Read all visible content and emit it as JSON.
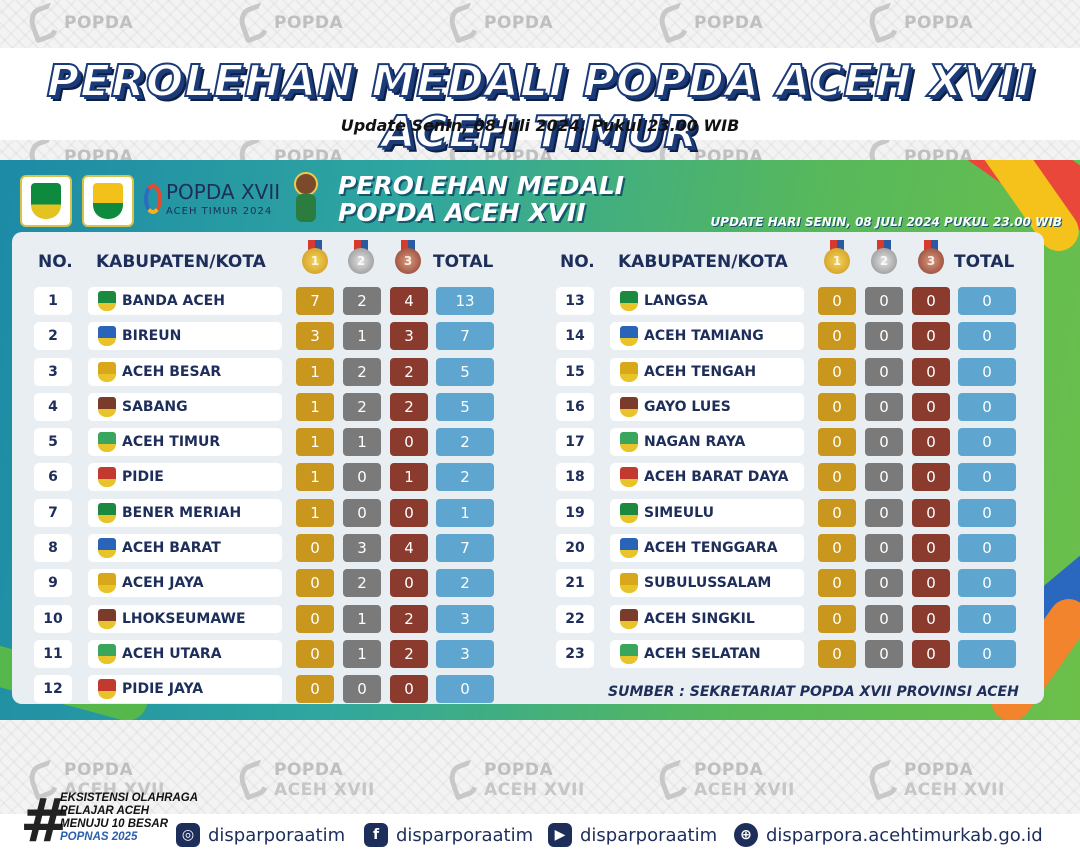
{
  "watermark": {
    "text": "POPDA",
    "sub": "ACEH XVII"
  },
  "header": {
    "title": "PEROLEHAN MEDALI POPDA ACEH XVII ACEH TIMUR",
    "update": "Update Senin, 08 Juli 2024, Pukul 23.00 WIB"
  },
  "board": {
    "popda_logo_main": "POPDA XVII",
    "popda_logo_sub": "ACEH TIMUR 2024",
    "title_line1": "PEROLEHAN MEDALI",
    "title_line2": "POPDA ACEH XVII",
    "update": "UPDATE HARI SENIN, 08 JULI 2024 PUKUL 23.00 WIB",
    "col_no": "NO.",
    "col_region": "KABUPATEN/KOTA",
    "col_total": "TOTAL",
    "medal_icons": [
      "gold-medal-icon",
      "silver-medal-icon",
      "bronze-medal-icon"
    ],
    "source": "SUMBER : SEKRETARIAT POPDA XVII PROVINSI ACEH"
  },
  "colors": {
    "gold": "#c9961e",
    "silver": "#7a7a7a",
    "bronze": "#8b3a2e",
    "total": "#5ea6cf",
    "text_dark": "#1e2e5a"
  },
  "standings_left": [
    {
      "no": "1",
      "name": "BANDA ACEH",
      "gold": "7",
      "silver": "2",
      "bronze": "4",
      "total": "13"
    },
    {
      "no": "2",
      "name": "BIREUN",
      "gold": "3",
      "silver": "1",
      "bronze": "3",
      "total": "7"
    },
    {
      "no": "3",
      "name": "ACEH BESAR",
      "gold": "1",
      "silver": "2",
      "bronze": "2",
      "total": "5"
    },
    {
      "no": "4",
      "name": "SABANG",
      "gold": "1",
      "silver": "2",
      "bronze": "2",
      "total": "5"
    },
    {
      "no": "5",
      "name": "ACEH TIMUR",
      "gold": "1",
      "silver": "1",
      "bronze": "0",
      "total": "2"
    },
    {
      "no": "6",
      "name": "PIDIE",
      "gold": "1",
      "silver": "0",
      "bronze": "1",
      "total": "2"
    },
    {
      "no": "7",
      "name": "BENER MERIAH",
      "gold": "1",
      "silver": "0",
      "bronze": "0",
      "total": "1"
    },
    {
      "no": "8",
      "name": "ACEH BARAT",
      "gold": "0",
      "silver": "3",
      "bronze": "4",
      "total": "7"
    },
    {
      "no": "9",
      "name": "ACEH JAYA",
      "gold": "0",
      "silver": "2",
      "bronze": "0",
      "total": "2"
    },
    {
      "no": "10",
      "name": "LHOKSEUMAWE",
      "gold": "0",
      "silver": "1",
      "bronze": "2",
      "total": "3"
    },
    {
      "no": "11",
      "name": "ACEH UTARA",
      "gold": "0",
      "silver": "1",
      "bronze": "2",
      "total": "3"
    },
    {
      "no": "12",
      "name": "PIDIE JAYA",
      "gold": "0",
      "silver": "0",
      "bronze": "0",
      "total": "0"
    }
  ],
  "standings_right": [
    {
      "no": "13",
      "name": "LANGSA",
      "gold": "0",
      "silver": "0",
      "bronze": "0",
      "total": "0"
    },
    {
      "no": "14",
      "name": "ACEH TAMIANG",
      "gold": "0",
      "silver": "0",
      "bronze": "0",
      "total": "0"
    },
    {
      "no": "15",
      "name": "ACEH TENGAH",
      "gold": "0",
      "silver": "0",
      "bronze": "0",
      "total": "0"
    },
    {
      "no": "16",
      "name": "GAYO LUES",
      "gold": "0",
      "silver": "0",
      "bronze": "0",
      "total": "0"
    },
    {
      "no": "17",
      "name": "NAGAN RAYA",
      "gold": "0",
      "silver": "0",
      "bronze": "0",
      "total": "0"
    },
    {
      "no": "18",
      "name": "ACEH BARAT DAYA",
      "gold": "0",
      "silver": "0",
      "bronze": "0",
      "total": "0"
    },
    {
      "no": "19",
      "name": "SIMEULU",
      "gold": "0",
      "silver": "0",
      "bronze": "0",
      "total": "0"
    },
    {
      "no": "20",
      "name": "ACEH TENGGARA",
      "gold": "0",
      "silver": "0",
      "bronze": "0",
      "total": "0"
    },
    {
      "no": "21",
      "name": "SUBULUSSALAM",
      "gold": "0",
      "silver": "0",
      "bronze": "0",
      "total": "0"
    },
    {
      "no": "22",
      "name": "ACEH SINGKIL",
      "gold": "0",
      "silver": "0",
      "bronze": "0",
      "total": "0"
    },
    {
      "no": "23",
      "name": "ACEH SELATAN",
      "gold": "0",
      "silver": "0",
      "bronze": "0",
      "total": "0"
    }
  ],
  "footer": {
    "slogan": [
      "EKSISTENSI OLAHRAGA",
      "PELAJAR ACEH",
      "MENUJU 10 BESAR",
      "POPNAS 2025"
    ],
    "instagram": "disparporaatim",
    "facebook": "disparporaatim",
    "youtube": "disparporaatim",
    "website": "disparpora.acehtimurkab.go.id"
  }
}
